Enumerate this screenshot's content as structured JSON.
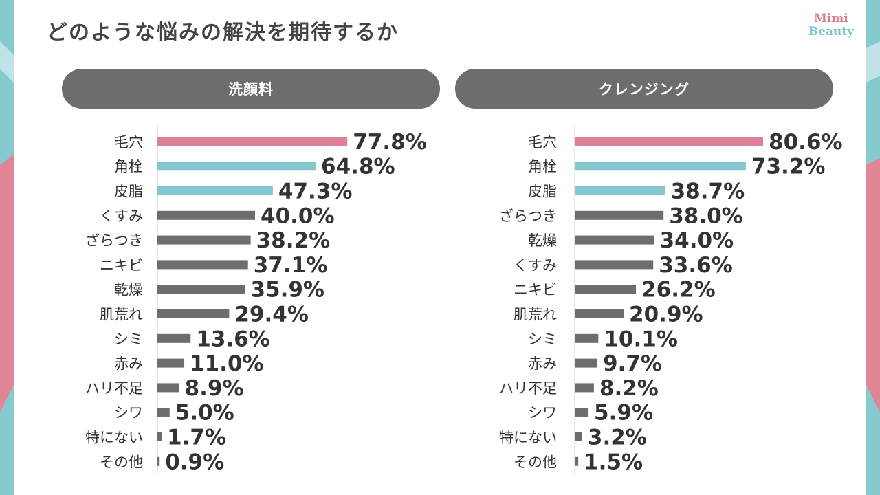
{
  "page": {
    "title": "どのような悩みの解決を期待するか",
    "logo_line1": "Mimi",
    "logo_line2": "Beauty"
  },
  "colors": {
    "highlight_pink": "#dd8194",
    "highlight_teal": "#85c7ce",
    "bar_gray": "#6d6d6d",
    "header_gray": "#6d6d6d"
  },
  "chart_data": [
    {
      "type": "bar",
      "orientation": "horizontal",
      "title": "洗顔料",
      "categories": [
        "毛穴",
        "角栓",
        "皮脂",
        "くすみ",
        "ざらつき",
        "ニキビ",
        "乾燥",
        "肌荒れ",
        "シミ",
        "赤み",
        "ハリ不足",
        "シワ",
        "特にない",
        "その他"
      ],
      "values": [
        77.8,
        64.8,
        47.3,
        40.0,
        38.2,
        37.1,
        35.9,
        29.4,
        13.6,
        11.0,
        8.9,
        5.0,
        1.7,
        0.9
      ],
      "value_labels": [
        "77.8%",
        "64.8%",
        "47.3%",
        "40.0%",
        "38.2%",
        "37.1%",
        "35.9%",
        "29.4%",
        "13.6%",
        "11.0%",
        "8.9%",
        "5.0%",
        "1.7%",
        "0.9%"
      ],
      "bar_colors": [
        "pink",
        "teal",
        "teal",
        "gray",
        "gray",
        "gray",
        "gray",
        "gray",
        "gray",
        "gray",
        "gray",
        "gray",
        "gray",
        "gray"
      ],
      "xlim": [
        0,
        100
      ],
      "grid": false,
      "unit": "%"
    },
    {
      "type": "bar",
      "orientation": "horizontal",
      "title": "クレンジング",
      "categories": [
        "毛穴",
        "角栓",
        "皮脂",
        "ざらつき",
        "乾燥",
        "くすみ",
        "ニキビ",
        "肌荒れ",
        "シミ",
        "赤み",
        "ハリ不足",
        "シワ",
        "特にない",
        "その他"
      ],
      "values": [
        80.6,
        73.2,
        38.7,
        38.0,
        34.0,
        33.6,
        26.2,
        20.9,
        10.1,
        9.7,
        8.2,
        5.9,
        3.2,
        1.5
      ],
      "value_labels": [
        "80.6%",
        "73.2%",
        "38.7%",
        "38.0%",
        "34.0%",
        "33.6%",
        "26.2%",
        "20.9%",
        "10.1%",
        "9.7%",
        "8.2%",
        "5.9%",
        "3.2%",
        "1.5%"
      ],
      "bar_colors": [
        "pink",
        "teal",
        "teal",
        "gray",
        "gray",
        "gray",
        "gray",
        "gray",
        "gray",
        "gray",
        "gray",
        "gray",
        "gray",
        "gray"
      ],
      "xlim": [
        0,
        100
      ],
      "grid": false,
      "unit": "%"
    }
  ]
}
